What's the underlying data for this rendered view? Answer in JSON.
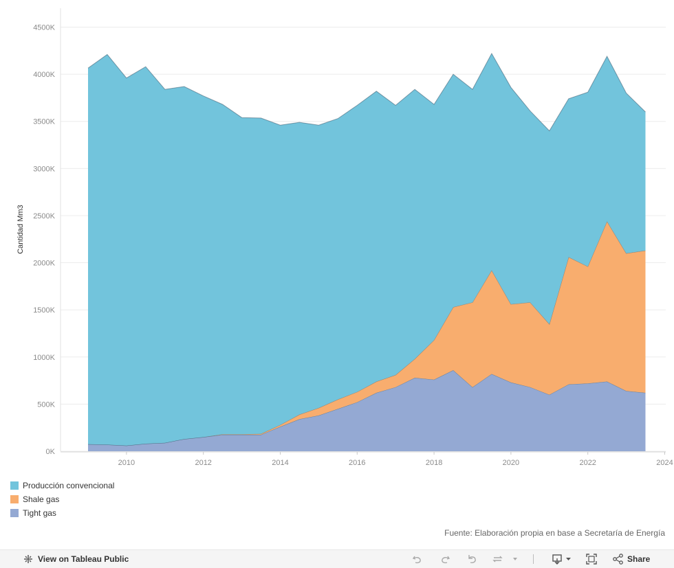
{
  "chart_data": {
    "type": "area",
    "stacked": true,
    "ylabel": "Cantidad Mm3",
    "xlabel": "",
    "y_ticks": [
      "0K",
      "500K",
      "1000K",
      "1500K",
      "2000K",
      "2500K",
      "3000K",
      "3500K",
      "4000K",
      "4500K"
    ],
    "x_ticks": [
      "2010",
      "2012",
      "2014",
      "2016",
      "2018",
      "2020",
      "2022",
      "2024"
    ],
    "xlim": [
      2008.4,
      2024.3
    ],
    "ylim": [
      0,
      4700
    ],
    "units": "K Mm3",
    "series": [
      {
        "name": "Tight gas",
        "color": "#94a9d3",
        "points": [
          [
            2009.0,
            75
          ],
          [
            2009.5,
            70
          ],
          [
            2010.0,
            60
          ],
          [
            2010.5,
            80
          ],
          [
            2011.0,
            90
          ],
          [
            2011.5,
            130
          ],
          [
            2012.0,
            150
          ],
          [
            2012.5,
            175
          ],
          [
            2013.0,
            175
          ],
          [
            2013.5,
            175
          ],
          [
            2014.0,
            260
          ],
          [
            2014.5,
            340
          ],
          [
            2015.0,
            380
          ],
          [
            2015.5,
            450
          ],
          [
            2016.0,
            520
          ],
          [
            2016.5,
            620
          ],
          [
            2017.0,
            680
          ],
          [
            2017.5,
            780
          ],
          [
            2018.0,
            760
          ],
          [
            2018.5,
            860
          ],
          [
            2019.0,
            680
          ],
          [
            2019.5,
            820
          ],
          [
            2020.0,
            730
          ],
          [
            2020.5,
            680
          ],
          [
            2021.0,
            600
          ],
          [
            2021.5,
            710
          ],
          [
            2022.0,
            720
          ],
          [
            2022.5,
            740
          ],
          [
            2023.0,
            640
          ],
          [
            2023.5,
            620
          ]
        ]
      },
      {
        "name": "Shale gas",
        "color": "#f8ad6e",
        "points": [
          [
            2009.0,
            0
          ],
          [
            2009.5,
            0
          ],
          [
            2010.0,
            0
          ],
          [
            2010.5,
            0
          ],
          [
            2011.0,
            0
          ],
          [
            2011.5,
            0
          ],
          [
            2012.0,
            0
          ],
          [
            2012.5,
            5
          ],
          [
            2013.0,
            5
          ],
          [
            2013.5,
            10
          ],
          [
            2014.0,
            20
          ],
          [
            2014.5,
            50
          ],
          [
            2015.0,
            80
          ],
          [
            2015.5,
            100
          ],
          [
            2016.0,
            110
          ],
          [
            2016.5,
            120
          ],
          [
            2017.0,
            130
          ],
          [
            2017.5,
            200
          ],
          [
            2018.0,
            420
          ],
          [
            2018.5,
            670
          ],
          [
            2019.0,
            900
          ],
          [
            2019.5,
            1100
          ],
          [
            2020.0,
            830
          ],
          [
            2020.5,
            900
          ],
          [
            2021.0,
            750
          ],
          [
            2021.5,
            1350
          ],
          [
            2022.0,
            1240
          ],
          [
            2022.5,
            1700
          ],
          [
            2023.0,
            1460
          ],
          [
            2023.5,
            1510
          ]
        ]
      },
      {
        "name": "Producción convencional",
        "color": "#72c4dc",
        "points": [
          [
            2009.0,
            3990
          ],
          [
            2009.5,
            4140
          ],
          [
            2010.0,
            3900
          ],
          [
            2010.5,
            4000
          ],
          [
            2011.0,
            3750
          ],
          [
            2011.5,
            3740
          ],
          [
            2012.0,
            3620
          ],
          [
            2012.5,
            3500
          ],
          [
            2013.0,
            3360
          ],
          [
            2013.5,
            3350
          ],
          [
            2014.0,
            3180
          ],
          [
            2014.5,
            3100
          ],
          [
            2015.0,
            3000
          ],
          [
            2015.5,
            2980
          ],
          [
            2016.0,
            3040
          ],
          [
            2016.5,
            3080
          ],
          [
            2017.0,
            2860
          ],
          [
            2017.5,
            2860
          ],
          [
            2018.0,
            2500
          ],
          [
            2018.5,
            2470
          ],
          [
            2019.0,
            2260
          ],
          [
            2019.5,
            2300
          ],
          [
            2020.0,
            2300
          ],
          [
            2020.5,
            2030
          ],
          [
            2021.0,
            2050
          ],
          [
            2021.5,
            1680
          ],
          [
            2022.0,
            1850
          ],
          [
            2022.5,
            1750
          ],
          [
            2023.0,
            1700
          ],
          [
            2023.5,
            1470
          ]
        ]
      }
    ],
    "legend_order": [
      "Producción convencional",
      "Shale gas",
      "Tight gas"
    ],
    "legend_position": "bottom-left",
    "grid": true
  },
  "source": "Fuente: Elaboración propia en base a Secretaría de Energía",
  "toolbar": {
    "view_label": "View on Tableau Public",
    "share_label": "Share"
  }
}
